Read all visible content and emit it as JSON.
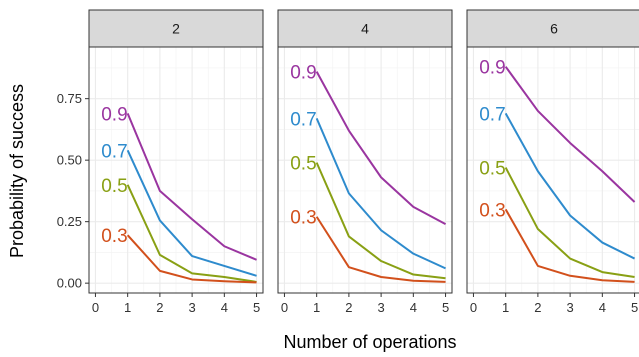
{
  "chart_data": {
    "type": "line",
    "xlabel": "Number of operations",
    "ylabel": "Probability of success",
    "xlim": [
      -0.2,
      5.2
    ],
    "ylim": [
      -0.04,
      0.96
    ],
    "x_ticks": [
      0,
      1,
      2,
      3,
      4,
      5
    ],
    "y_ticks": [
      0,
      0.25,
      0.5,
      0.75
    ],
    "y_tick_labels": [
      "0.00",
      "0.25",
      "0.50",
      "0.75"
    ],
    "grid": true,
    "x": [
      1,
      2,
      3,
      4,
      5
    ],
    "panels": [
      {
        "label": "2",
        "series": [
          {
            "name": "0.9",
            "color": "#9a35a0",
            "values": [
              0.69,
              0.375,
              0.26,
              0.15,
              0.095
            ]
          },
          {
            "name": "0.7",
            "color": "#2e8bcd",
            "values": [
              0.54,
              0.255,
              0.11,
              0.07,
              0.03
            ]
          },
          {
            "name": "0.5",
            "color": "#89a014",
            "values": [
              0.4,
              0.115,
              0.04,
              0.025,
              0.005
            ]
          },
          {
            "name": "0.3",
            "color": "#d2501c",
            "values": [
              0.195,
              0.05,
              0.015,
              0.008,
              0.003
            ]
          }
        ]
      },
      {
        "label": "4",
        "series": [
          {
            "name": "0.9",
            "color": "#9a35a0",
            "values": [
              0.86,
              0.62,
              0.43,
              0.31,
              0.24
            ]
          },
          {
            "name": "0.7",
            "color": "#2e8bcd",
            "values": [
              0.67,
              0.365,
              0.215,
              0.12,
              0.06
            ]
          },
          {
            "name": "0.5",
            "color": "#89a014",
            "values": [
              0.49,
              0.19,
              0.09,
              0.035,
              0.02
            ]
          },
          {
            "name": "0.3",
            "color": "#d2501c",
            "values": [
              0.27,
              0.065,
              0.025,
              0.01,
              0.005
            ]
          }
        ]
      },
      {
        "label": "6",
        "series": [
          {
            "name": "0.9",
            "color": "#9a35a0",
            "values": [
              0.88,
              0.7,
              0.57,
              0.455,
              0.33
            ]
          },
          {
            "name": "0.7",
            "color": "#2e8bcd",
            "values": [
              0.69,
              0.455,
              0.275,
              0.165,
              0.1
            ]
          },
          {
            "name": "0.5",
            "color": "#89a014",
            "values": [
              0.47,
              0.22,
              0.1,
              0.045,
              0.025
            ]
          },
          {
            "name": "0.3",
            "color": "#d2501c",
            "values": [
              0.3,
              0.07,
              0.03,
              0.012,
              0.005
            ]
          }
        ]
      }
    ]
  }
}
